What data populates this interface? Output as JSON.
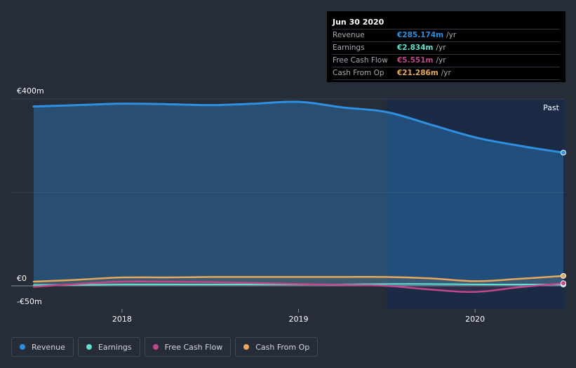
{
  "colors": {
    "revenue": "#2f8fe0",
    "earnings": "#5ee0d0",
    "free_cash_flow": "#c0478a",
    "cash_from_op": "#e6a95b",
    "past_region": "#1c2b45",
    "background": "#262c38"
  },
  "tooltip": {
    "date": "Jun 30 2020",
    "rows": [
      {
        "label": "Revenue",
        "value": "€285.174m",
        "unit": "/yr"
      },
      {
        "label": "Earnings",
        "value": "€2.834m",
        "unit": "/yr"
      },
      {
        "label": "Free Cash Flow",
        "value": "€5.551m",
        "unit": "/yr"
      },
      {
        "label": "Cash From Op",
        "value": "€21.286m",
        "unit": "/yr"
      }
    ]
  },
  "legend": [
    {
      "label": "Revenue",
      "icon": "revenue-dot-icon"
    },
    {
      "label": "Earnings",
      "icon": "earnings-dot-icon"
    },
    {
      "label": "Free Cash Flow",
      "icon": "free-cash-flow-dot-icon"
    },
    {
      "label": "Cash From Op",
      "icon": "cash-from-op-dot-icon"
    }
  ],
  "chart_data": {
    "type": "area",
    "title": "",
    "xlabel": "",
    "ylabel": "",
    "ylim": [
      -50,
      400
    ],
    "xlim": [
      2017.5,
      2020.5
    ],
    "y_tick_labels": [
      {
        "value": 400,
        "label": "€400m"
      },
      {
        "value": 0,
        "label": "€0"
      },
      {
        "value": -50,
        "label": "-€50m"
      }
    ],
    "x_tick_labels": [
      {
        "value": 2018,
        "label": "2018"
      },
      {
        "value": 2019,
        "label": "2019"
      },
      {
        "value": 2020,
        "label": "2020"
      }
    ],
    "past_label": "Past",
    "past_start": 2019.5,
    "series": [
      {
        "name": "Revenue",
        "key": "revenue",
        "x": [
          2017.5,
          2017.75,
          2018.0,
          2018.25,
          2018.5,
          2018.75,
          2019.0,
          2019.25,
          2019.5,
          2019.75,
          2020.0,
          2020.25,
          2020.5
        ],
        "values": [
          384,
          387,
          390,
          389,
          387,
          390,
          394,
          382,
          372,
          345,
          318,
          300,
          285.174
        ]
      },
      {
        "name": "Earnings",
        "key": "earnings",
        "x": [
          2017.5,
          2017.75,
          2018.0,
          2018.25,
          2018.5,
          2018.75,
          2019.0,
          2019.25,
          2019.5,
          2019.75,
          2020.0,
          2020.25,
          2020.5
        ],
        "values": [
          2,
          2,
          3,
          3,
          3,
          3,
          3,
          3,
          4,
          4,
          3,
          3,
          2.834
        ]
      },
      {
        "name": "Free Cash Flow",
        "key": "free_cash_flow",
        "x": [
          2017.5,
          2017.75,
          2018.0,
          2018.25,
          2018.5,
          2018.75,
          2019.0,
          2019.25,
          2019.5,
          2019.75,
          2020.0,
          2020.25,
          2020.5
        ],
        "values": [
          -2,
          4,
          9,
          9,
          8,
          6,
          4,
          2,
          0,
          -8,
          -13,
          -3,
          5.551
        ]
      },
      {
        "name": "Cash From Op",
        "key": "cash_from_op",
        "x": [
          2017.5,
          2017.75,
          2018.0,
          2018.25,
          2018.5,
          2018.75,
          2019.0,
          2019.25,
          2019.5,
          2019.75,
          2020.0,
          2020.25,
          2020.5
        ],
        "values": [
          9,
          13,
          18,
          18,
          19,
          19,
          19,
          19,
          19,
          16,
          10,
          15,
          21.286
        ]
      }
    ]
  }
}
